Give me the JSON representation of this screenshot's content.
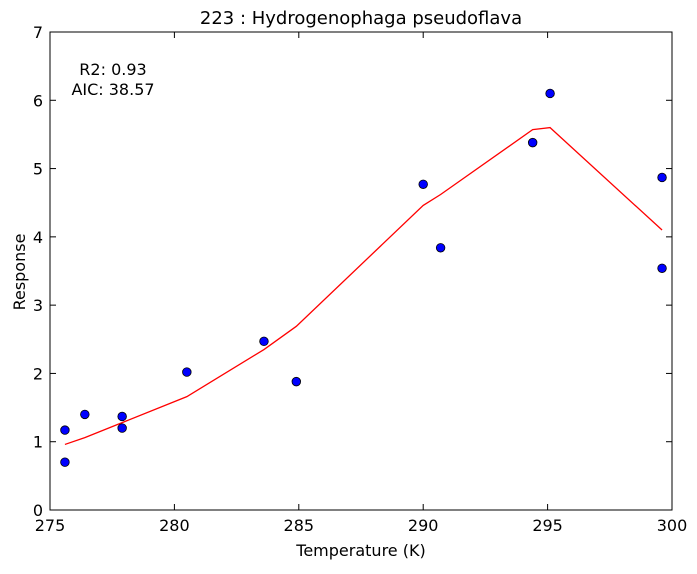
{
  "chart_data": {
    "type": "scatter",
    "title": "223 : Hydrogenophaga pseudoflava",
    "xlabel": "Temperature (K)",
    "ylabel": "Response",
    "xlim": [
      275,
      300
    ],
    "ylim": [
      0,
      7
    ],
    "x_ticks": [
      275,
      280,
      285,
      290,
      295,
      300
    ],
    "y_ticks": [
      0,
      1,
      2,
      3,
      4,
      5,
      6,
      7
    ],
    "annotations": [
      "R2: 0.93",
      "AIC: 38.57"
    ],
    "grid": false,
    "series": [
      {
        "kind": "points",
        "color": "#0000ff",
        "x": [
          275.6,
          275.6,
          276.4,
          277.9,
          277.9,
          280.5,
          283.6,
          284.9,
          290.0,
          290.7,
          294.4,
          295.1,
          299.6,
          299.6
        ],
        "y": [
          1.17,
          0.7,
          1.4,
          1.37,
          1.2,
          2.02,
          2.47,
          1.88,
          4.77,
          3.84,
          5.38,
          6.1,
          4.87,
          3.54
        ]
      },
      {
        "kind": "fit-line",
        "color": "#ff0000",
        "x": [
          275.6,
          276.4,
          277.9,
          280.5,
          283.6,
          284.9,
          290.0,
          290.7,
          294.4,
          295.1,
          299.6
        ],
        "y": [
          0.96,
          1.06,
          1.28,
          1.66,
          2.35,
          2.69,
          4.46,
          4.62,
          5.57,
          5.6,
          4.1
        ]
      }
    ]
  }
}
